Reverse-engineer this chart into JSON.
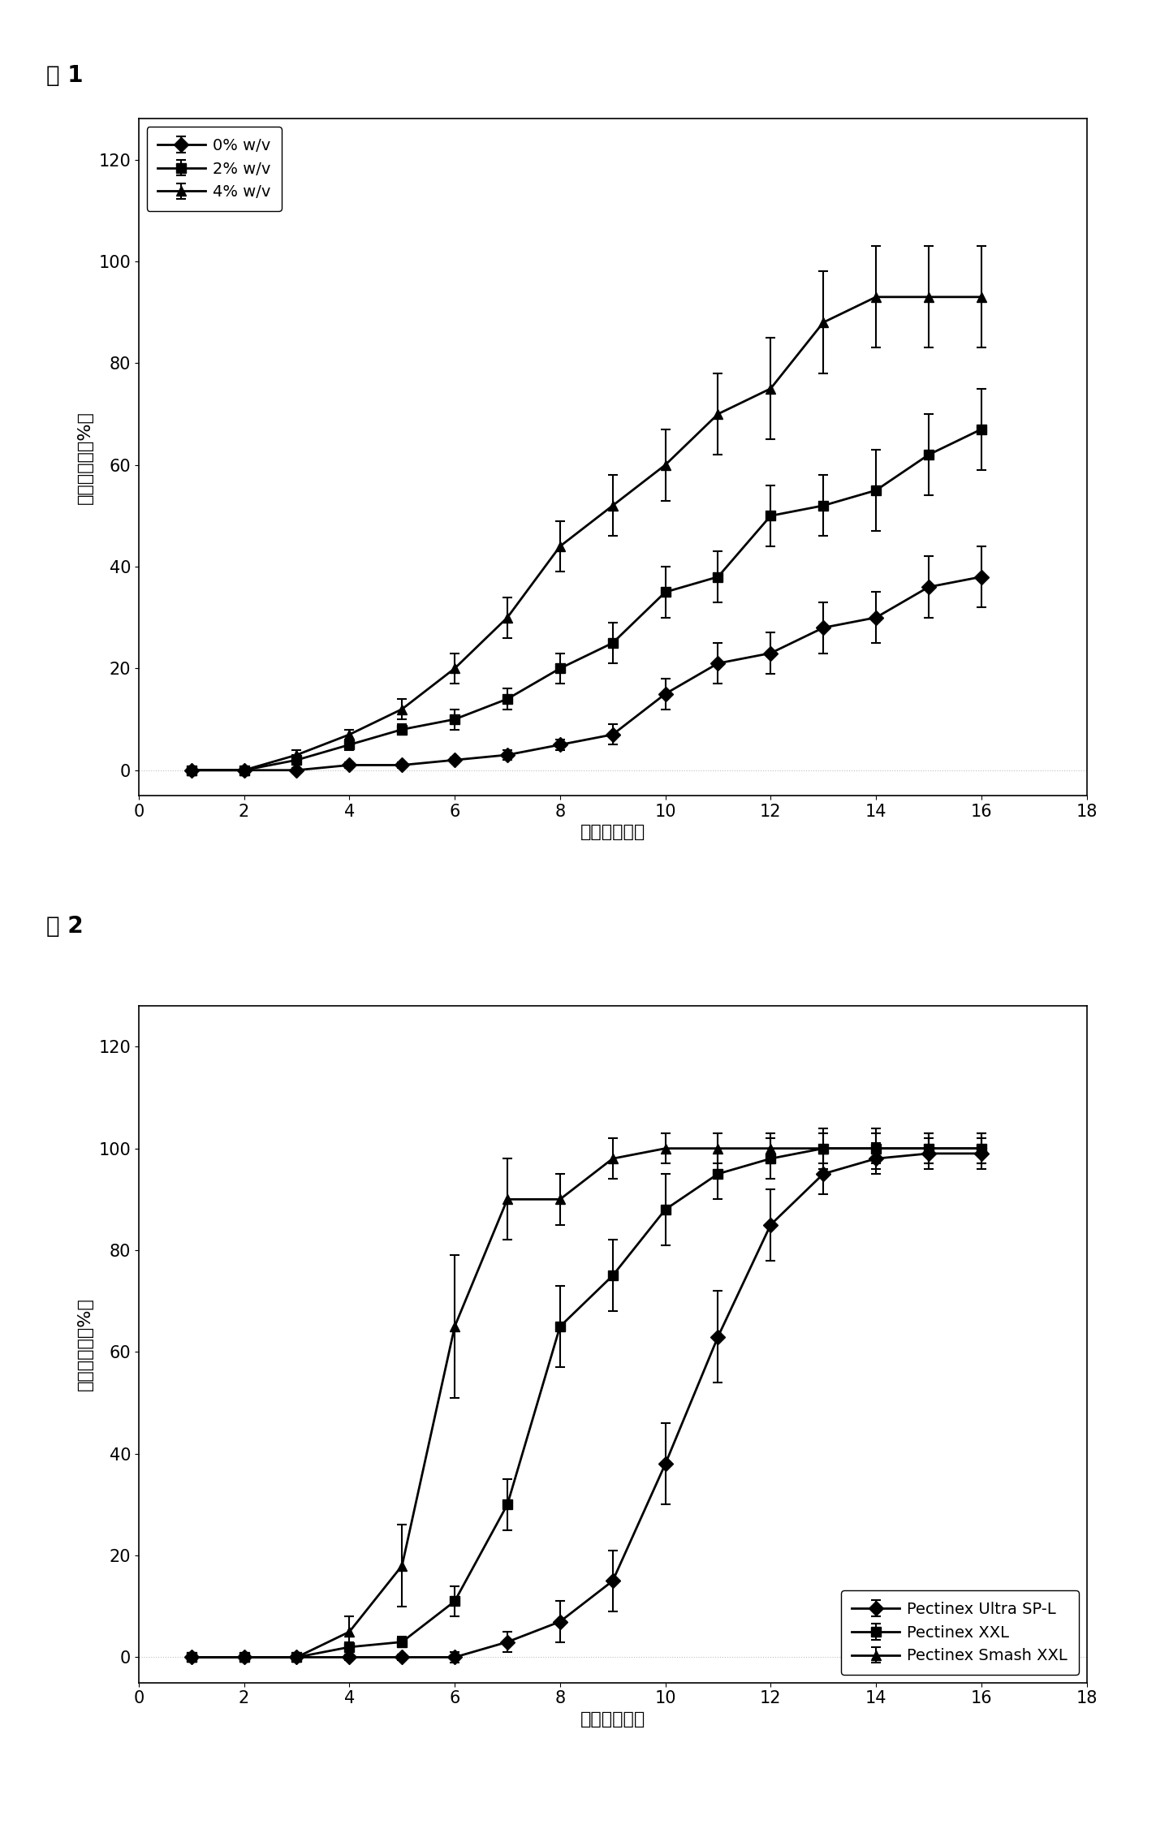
{
  "fig1_title": "图 1",
  "fig2_title": "图 2",
  "ylabel": "释放百分率（%）",
  "xlabel": "时间（小时）",
  "xlim": [
    0,
    18
  ],
  "ylim": [
    -5,
    128
  ],
  "xticks": [
    0,
    2,
    4,
    6,
    8,
    10,
    12,
    14,
    16,
    18
  ],
  "yticks": [
    0,
    20,
    40,
    60,
    80,
    100,
    120
  ],
  "fig1_series": [
    {
      "label": "0% w/v",
      "marker": "D",
      "x": [
        1,
        2,
        3,
        4,
        5,
        6,
        7,
        8,
        9,
        10,
        11,
        12,
        13,
        14,
        15,
        16
      ],
      "y": [
        0,
        0,
        0,
        1,
        1,
        2,
        3,
        5,
        7,
        15,
        21,
        23,
        28,
        30,
        36,
        38
      ],
      "yerr": [
        0.5,
        0.5,
        0.5,
        0.5,
        0.5,
        0.5,
        1,
        1,
        2,
        3,
        4,
        4,
        5,
        5,
        6,
        6
      ]
    },
    {
      "label": "2% w/v",
      "marker": "s",
      "x": [
        1,
        2,
        3,
        4,
        5,
        6,
        7,
        8,
        9,
        10,
        11,
        12,
        13,
        14,
        15,
        16
      ],
      "y": [
        0,
        0,
        2,
        5,
        8,
        10,
        14,
        20,
        25,
        35,
        38,
        50,
        52,
        55,
        62,
        67
      ],
      "yerr": [
        0.5,
        0.5,
        1,
        1,
        1,
        2,
        2,
        3,
        4,
        5,
        5,
        6,
        6,
        8,
        8,
        8
      ]
    },
    {
      "label": "4% w/v",
      "marker": "^",
      "x": [
        1,
        2,
        3,
        4,
        5,
        6,
        7,
        8,
        9,
        10,
        11,
        12,
        13,
        14,
        15,
        16
      ],
      "y": [
        0,
        0,
        3,
        7,
        12,
        20,
        30,
        44,
        52,
        60,
        70,
        75,
        88,
        93,
        93,
        93
      ],
      "yerr": [
        0.5,
        0.5,
        1,
        1,
        2,
        3,
        4,
        5,
        6,
        7,
        8,
        10,
        10,
        10,
        10,
        10
      ]
    }
  ],
  "fig2_series": [
    {
      "label": "Pectinex Ultra SP-L",
      "marker": "D",
      "x": [
        1,
        2,
        3,
        4,
        5,
        6,
        7,
        8,
        9,
        10,
        11,
        12,
        13,
        14,
        15,
        16
      ],
      "y": [
        0,
        0,
        0,
        0,
        0,
        0,
        3,
        7,
        15,
        38,
        63,
        85,
        95,
        98,
        99,
        99
      ],
      "yerr": [
        0.5,
        0.5,
        0.5,
        0.5,
        0.5,
        1,
        2,
        4,
        6,
        8,
        9,
        7,
        4,
        3,
        3,
        3
      ]
    },
    {
      "label": "Pectinex XXL",
      "marker": "s",
      "x": [
        1,
        2,
        3,
        4,
        5,
        6,
        7,
        8,
        9,
        10,
        11,
        12,
        13,
        14,
        15,
        16
      ],
      "y": [
        0,
        0,
        0,
        2,
        3,
        11,
        30,
        65,
        75,
        88,
        95,
        98,
        100,
        100,
        100,
        100
      ],
      "yerr": [
        0.5,
        0.5,
        0.5,
        1,
        1,
        3,
        5,
        8,
        7,
        7,
        5,
        4,
        4,
        4,
        3,
        3
      ]
    },
    {
      "label": "Pectinex Smash XXL",
      "marker": "^",
      "x": [
        1,
        2,
        3,
        4,
        5,
        6,
        7,
        8,
        9,
        10,
        11,
        12,
        13,
        14,
        15,
        16
      ],
      "y": [
        0,
        0,
        0,
        5,
        18,
        65,
        90,
        90,
        98,
        100,
        100,
        100,
        100,
        100,
        100,
        100
      ],
      "yerr": [
        0.5,
        0.5,
        0.5,
        3,
        8,
        14,
        8,
        5,
        4,
        3,
        3,
        3,
        3,
        3,
        3,
        3
      ]
    }
  ],
  "line_color": "#000000",
  "bg_color": "#ffffff",
  "fig1_legend_loc": "upper left",
  "fig2_legend_loc": "lower right",
  "title_fontsize": 20,
  "label_fontsize": 16,
  "tick_fontsize": 15,
  "legend_fontsize": 14,
  "marker_size": 9,
  "linewidth": 2.0,
  "capsize": 4,
  "elinewidth": 1.5,
  "capthick": 1.5
}
